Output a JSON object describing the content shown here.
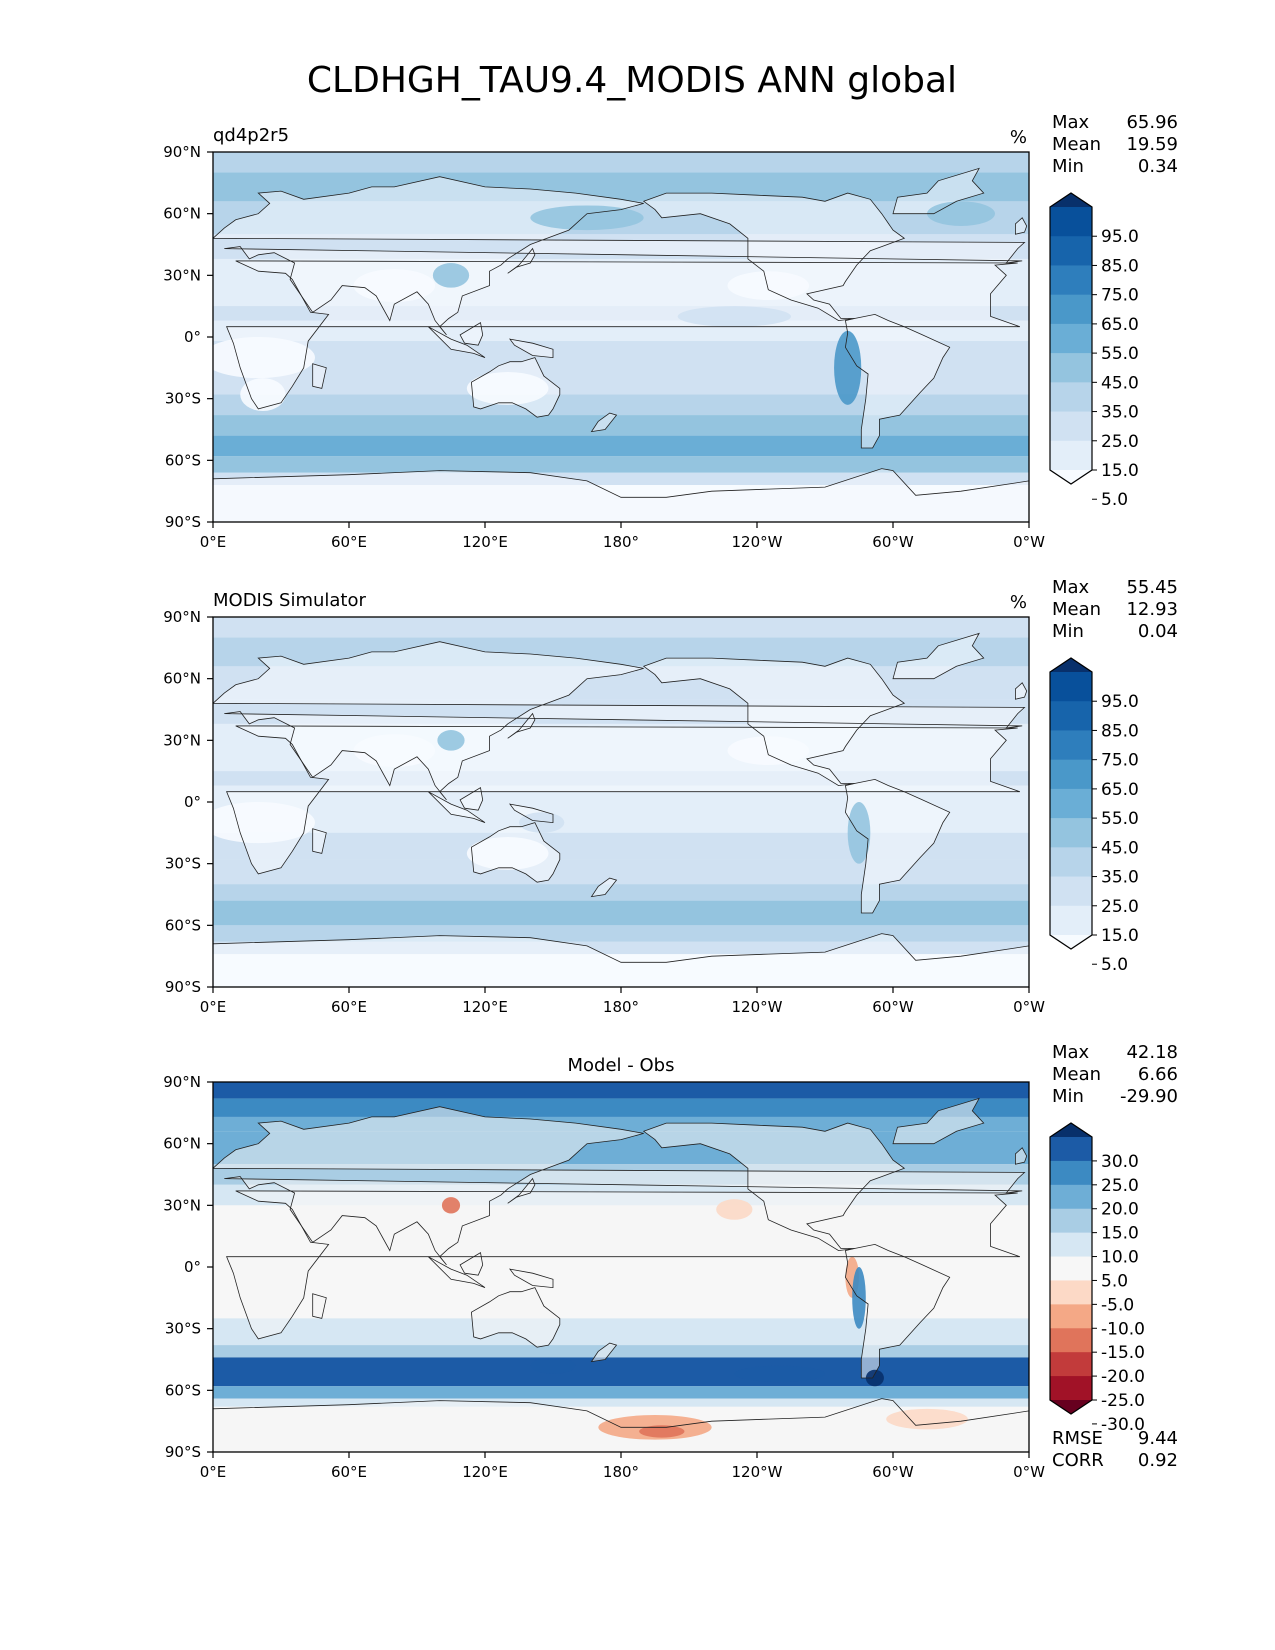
{
  "title": "CLDHGH_TAU9.4_MODIS ANN global",
  "lon_ticks": [
    "0°E",
    "60°E",
    "120°E",
    "180°",
    "120°W",
    "60°W",
    "0°W"
  ],
  "lat_ticks": [
    "90°N",
    "60°N",
    "30°N",
    "0°",
    "30°S",
    "60°S",
    "90°S"
  ],
  "panels": [
    {
      "left_label": "qd4p2r5",
      "center_label": "",
      "units": "%",
      "stats": [
        {
          "label": "Max",
          "value": "65.96"
        },
        {
          "label": "Mean",
          "value": "19.59"
        },
        {
          "label": "Min",
          "value": "0.34"
        }
      ],
      "colorbar_labels": [
        "95.0",
        "85.0",
        "75.0",
        "65.0",
        "55.0",
        "45.0",
        "35.0",
        "25.0",
        "15.0",
        "5.0"
      ],
      "colorbar_colors": [
        "#08306b",
        "#08509b",
        "#1764ab",
        "#2e7ebc",
        "#4a98c9",
        "#6aaed6",
        "#94c4df",
        "#b7d4ea",
        "#d0e1f2",
        "#e3eef9",
        "#f7fbff"
      ],
      "colors": {
        "ocean_base": "#d4e4f3",
        "land_base": "#f4f8fd"
      }
    },
    {
      "left_label": "MODIS Simulator",
      "center_label": "",
      "units": "%",
      "stats": [
        {
          "label": "Max",
          "value": "55.45"
        },
        {
          "label": "Mean",
          "value": "12.93"
        },
        {
          "label": "Min",
          "value": "0.04"
        }
      ],
      "colorbar_labels": [
        "95.0",
        "85.0",
        "75.0",
        "65.0",
        "55.0",
        "45.0",
        "35.0",
        "25.0",
        "15.0",
        "5.0"
      ],
      "colorbar_colors": [
        "#08306b",
        "#08509b",
        "#1764ab",
        "#2e7ebc",
        "#4a98c9",
        "#6aaed6",
        "#94c4df",
        "#b7d4ea",
        "#d0e1f2",
        "#e3eef9",
        "#f7fbff"
      ],
      "colors": {
        "ocean_base": "#e1ecf7",
        "land_base": "#f7fbff"
      }
    },
    {
      "left_label": "",
      "center_label": "Model - Obs",
      "units": "",
      "stats": [
        {
          "label": "Max",
          "value": "42.18"
        },
        {
          "label": "Mean",
          "value": "6.66"
        },
        {
          "label": "Min",
          "value": "-29.90"
        }
      ],
      "colorbar_labels": [
        "30.0",
        "25.0",
        "20.0",
        "15.0",
        "10.0",
        "5.0",
        "-5.0",
        "-10.0",
        "-15.0",
        "-20.0",
        "-25.0",
        "-30.0"
      ],
      "colorbar_colors": [
        "#08306b",
        "#1c5ba6",
        "#3c8ac2",
        "#6eaed6",
        "#a9cde4",
        "#d6e7f3",
        "#f7f7f7",
        "#fcd9c6",
        "#f4a886",
        "#e0745b",
        "#c23b3b",
        "#a11227",
        "#67001f"
      ],
      "colors": {
        "ocean_base": "#f5f5f5",
        "land_base": "#f5f5f5"
      },
      "bottom_stats": [
        {
          "label": "RMSE",
          "value": "9.44"
        },
        {
          "label": "CORR",
          "value": "0.92"
        }
      ]
    }
  ]
}
